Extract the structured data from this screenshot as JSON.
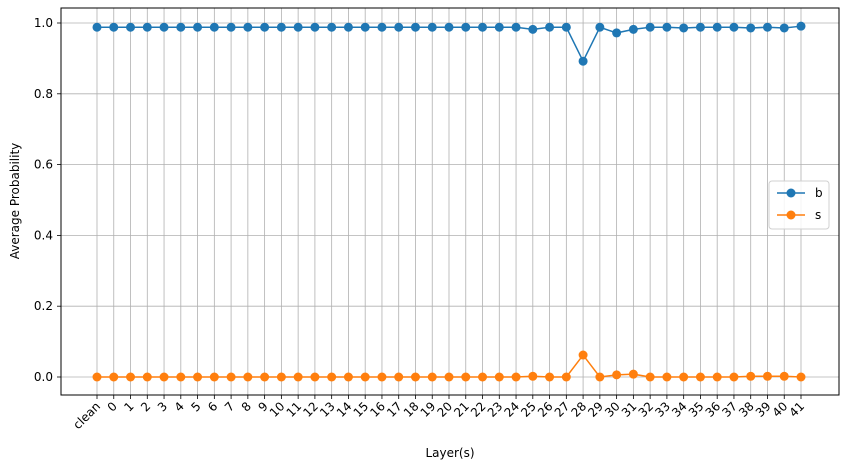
{
  "chart_data": {
    "type": "line",
    "title": "",
    "xlabel": "Layer(s)",
    "ylabel": "Average Probability",
    "categories": [
      "clean",
      "0",
      "1",
      "2",
      "3",
      "4",
      "5",
      "6",
      "7",
      "8",
      "9",
      "10",
      "11",
      "12",
      "13",
      "14",
      "15",
      "16",
      "17",
      "18",
      "19",
      "20",
      "21",
      "22",
      "23",
      "24",
      "25",
      "26",
      "27",
      "28",
      "29",
      "30",
      "31",
      "32",
      "33",
      "34",
      "35",
      "36",
      "37",
      "38",
      "39",
      "40",
      "41"
    ],
    "series": [
      {
        "name": "b",
        "color": "#1f77b4",
        "values": [
          0.988,
          0.988,
          0.988,
          0.988,
          0.988,
          0.988,
          0.988,
          0.988,
          0.988,
          0.988,
          0.988,
          0.988,
          0.988,
          0.988,
          0.988,
          0.988,
          0.988,
          0.988,
          0.988,
          0.988,
          0.988,
          0.988,
          0.988,
          0.988,
          0.988,
          0.988,
          0.982,
          0.988,
          0.988,
          0.892,
          0.988,
          0.972,
          0.982,
          0.988,
          0.988,
          0.986,
          0.988,
          0.988,
          0.988,
          0.986,
          0.988,
          0.986,
          0.991
        ]
      },
      {
        "name": "s",
        "color": "#ff7f0e",
        "values": [
          0.0,
          0.0,
          0.0,
          0.0,
          0.0,
          0.0,
          0.0,
          0.0,
          0.0,
          0.0,
          0.0,
          0.0,
          0.0,
          0.0,
          0.0,
          0.0,
          0.0,
          0.0,
          0.0,
          0.0,
          0.0,
          0.0,
          0.0,
          0.0,
          0.0,
          0.0,
          0.002,
          0.0,
          0.0,
          0.062,
          0.0,
          0.006,
          0.008,
          0.0,
          0.0,
          0.0,
          0.0,
          0.0,
          0.0,
          0.002,
          0.002,
          0.002,
          0.0
        ]
      }
    ],
    "yticks": [
      0.0,
      0.2,
      0.4,
      0.6,
      0.8,
      1.0
    ],
    "ytick_labels": [
      "0.0",
      "0.2",
      "0.4",
      "0.6",
      "0.8",
      "1.0"
    ],
    "ylim": [
      -0.05,
      1.04
    ],
    "grid": true,
    "legend_position": "center-right"
  }
}
